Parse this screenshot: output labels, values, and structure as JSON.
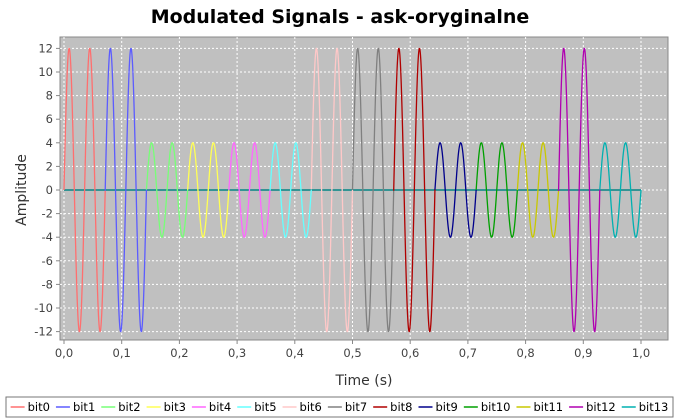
{
  "chart_data": {
    "type": "line",
    "title": "Modulated Signals - ask-oryginalne",
    "xlabel": "Time (s)",
    "ylabel": "Amplitude",
    "xlim": [
      0.0,
      1.0
    ],
    "ylim": [
      -13,
      13
    ],
    "xticks": [
      "0,0",
      "0,1",
      "0,2",
      "0,3",
      "0,4",
      "0,5",
      "0,6",
      "0,7",
      "0,8",
      "0,9",
      "1,0"
    ],
    "yticks": [
      "-12",
      "-10",
      "-8",
      "-6",
      "-4",
      "-2",
      "0",
      "2",
      "4",
      "6",
      "8",
      "10",
      "12"
    ],
    "grid": true,
    "background": "#c0c0c0",
    "legend_position": "bottom",
    "carrier_frequency_hz": 28,
    "bit_duration_s": 0.0714,
    "series": [
      {
        "name": "bit0",
        "color": "#ff6f6f",
        "amplitude": 12,
        "t_start": 0.0,
        "t_end": 0.0714
      },
      {
        "name": "bit1",
        "color": "#5c5cff",
        "amplitude": 12,
        "t_start": 0.0714,
        "t_end": 0.1429
      },
      {
        "name": "bit2",
        "color": "#77ff77",
        "amplitude": 4,
        "t_start": 0.1429,
        "t_end": 0.2143
      },
      {
        "name": "bit3",
        "color": "#ffff55",
        "amplitude": 4,
        "t_start": 0.2143,
        "t_end": 0.2857
      },
      {
        "name": "bit4",
        "color": "#ff66ff",
        "amplitude": 4,
        "t_start": 0.2857,
        "t_end": 0.3571
      },
      {
        "name": "bit5",
        "color": "#66ffff",
        "amplitude": 4,
        "t_start": 0.3571,
        "t_end": 0.4286
      },
      {
        "name": "bit6",
        "color": "#ffc8c8",
        "amplitude": 12,
        "t_start": 0.4286,
        "t_end": 0.5
      },
      {
        "name": "bit7",
        "color": "#808080",
        "amplitude": 12,
        "t_start": 0.5,
        "t_end": 0.5714
      },
      {
        "name": "bit8",
        "color": "#b00000",
        "amplitude": 12,
        "t_start": 0.5714,
        "t_end": 0.6429
      },
      {
        "name": "bit9",
        "color": "#00008b",
        "amplitude": 4,
        "t_start": 0.6429,
        "t_end": 0.7143
      },
      {
        "name": "bit10",
        "color": "#00a000",
        "amplitude": 4,
        "t_start": 0.7143,
        "t_end": 0.7857
      },
      {
        "name": "bit11",
        "color": "#c8c800",
        "amplitude": 4,
        "t_start": 0.7857,
        "t_end": 0.8571
      },
      {
        "name": "bit12",
        "color": "#b000b0",
        "amplitude": 12,
        "t_start": 0.8571,
        "t_end": 0.9286
      },
      {
        "name": "bit13",
        "color": "#00b0b0",
        "amplitude": 4,
        "t_start": 0.9286,
        "t_end": 1.0
      }
    ]
  }
}
